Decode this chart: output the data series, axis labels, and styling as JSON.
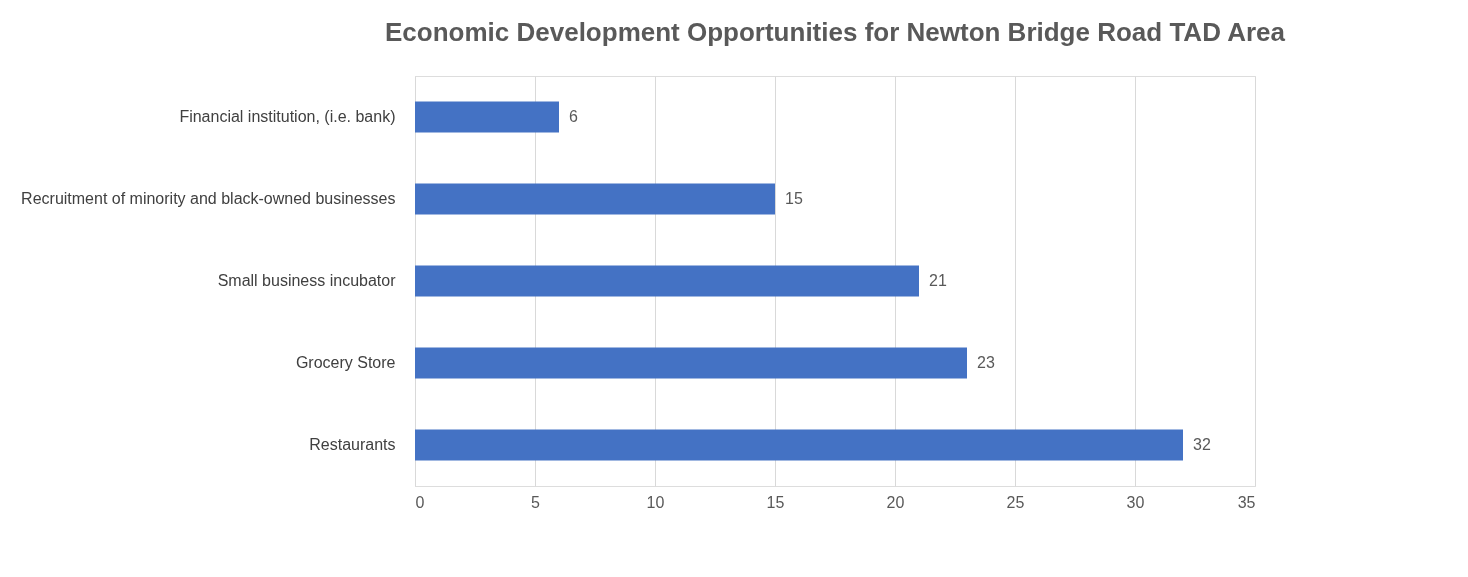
{
  "chart_data": {
    "type": "bar",
    "orientation": "horizontal",
    "title": "Economic Development Opportunities for Newton Bridge Road TAD Area",
    "categories": [
      "Financial institution, (i.e. bank)",
      "Recruitment of minority and black-owned businesses",
      "Small business incubator",
      "Grocery Store",
      "Restaurants"
    ],
    "values": [
      6,
      15,
      21,
      23,
      32
    ],
    "color": "#4472c4",
    "xlim": [
      0,
      35
    ],
    "xticks": [
      0,
      5,
      10,
      15,
      20,
      25,
      30,
      35
    ],
    "grid": "x",
    "data_labels": true
  }
}
